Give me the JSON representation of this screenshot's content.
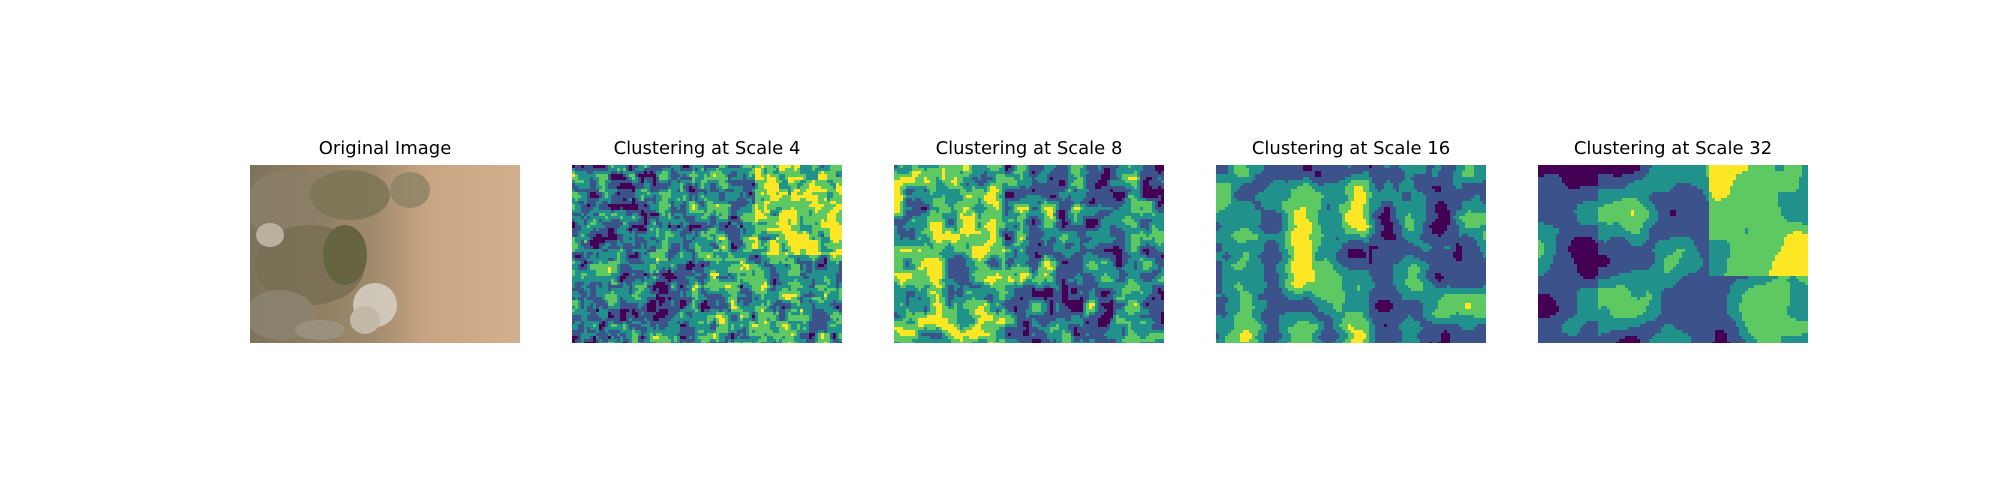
{
  "figure": {
    "panels": [
      {
        "title": "Original Image",
        "kind": "photo"
      },
      {
        "title": "Clustering at Scale 4",
        "kind": "clusters",
        "scale": 4
      },
      {
        "title": "Clustering at Scale 8",
        "kind": "clusters",
        "scale": 8
      },
      {
        "title": "Clustering at Scale 16",
        "kind": "clusters",
        "scale": 16
      },
      {
        "title": "Clustering at Scale 32",
        "kind": "clusters",
        "scale": 32
      }
    ],
    "cluster_palette": [
      "#440154",
      "#3b528b",
      "#21918c",
      "#5ec962",
      "#fde725"
    ],
    "photo_palette": [
      "#8f7c5f",
      "#a69272",
      "#c9a884",
      "#6f6a4c",
      "#d9d0c2"
    ]
  }
}
